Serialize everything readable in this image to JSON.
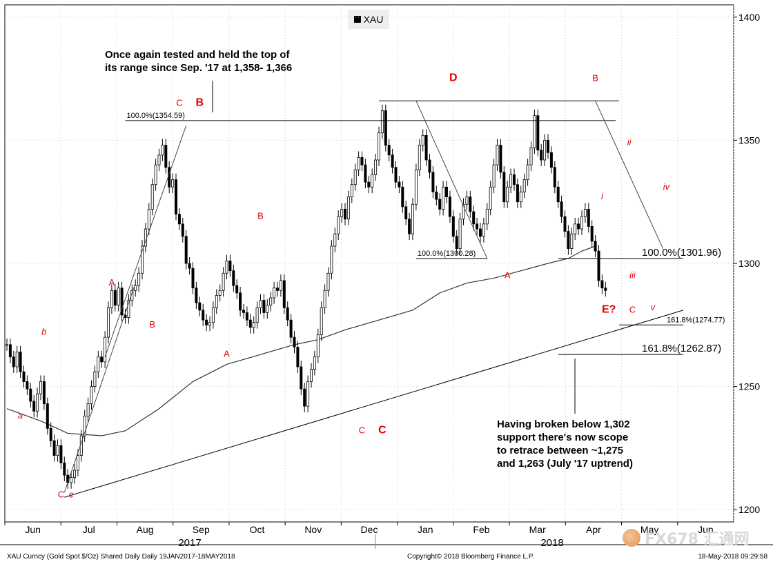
{
  "chart_data": {
    "type": "candlestick",
    "legend": "XAU",
    "ylim": [
      1195,
      1405
    ],
    "y_ticks": [
      1200,
      1250,
      1300,
      1350,
      1400
    ],
    "x_ticks": [
      "Jun",
      "Jul",
      "Aug",
      "Sep",
      "Oct",
      "Nov",
      "Dec",
      "Jan",
      "Feb",
      "Mar",
      "Apr",
      "May",
      "Jun"
    ],
    "x_years": [
      "2017",
      "2018"
    ],
    "close_series": [
      [
        0,
        1267
      ],
      [
        1,
        1262
      ],
      [
        2,
        1258
      ],
      [
        3,
        1264
      ],
      [
        4,
        1256
      ],
      [
        5,
        1252
      ],
      [
        6,
        1249
      ],
      [
        7,
        1244
      ],
      [
        8,
        1240
      ],
      [
        9,
        1247
      ],
      [
        10,
        1252
      ],
      [
        11,
        1243
      ],
      [
        12,
        1233
      ],
      [
        13,
        1228
      ],
      [
        14,
        1222
      ],
      [
        15,
        1226
      ],
      [
        16,
        1219
      ],
      [
        17,
        1214
      ],
      [
        18,
        1211
      ],
      [
        19,
        1213
      ],
      [
        20,
        1216
      ],
      [
        21,
        1222
      ],
      [
        22,
        1230
      ],
      [
        23,
        1238
      ],
      [
        24,
        1243
      ],
      [
        25,
        1250
      ],
      [
        26,
        1256
      ],
      [
        27,
        1262
      ],
      [
        28,
        1260
      ],
      [
        29,
        1270
      ],
      [
        30,
        1282
      ],
      [
        31,
        1289
      ],
      [
        32,
        1283
      ],
      [
        33,
        1290
      ],
      [
        34,
        1279
      ],
      [
        35,
        1278
      ],
      [
        36,
        1285
      ],
      [
        37,
        1289
      ],
      [
        38,
        1291
      ],
      [
        39,
        1296
      ],
      [
        40,
        1307
      ],
      [
        41,
        1314
      ],
      [
        42,
        1322
      ],
      [
        43,
        1332
      ],
      [
        44,
        1340
      ],
      [
        45,
        1344
      ],
      [
        46,
        1348
      ],
      [
        47,
        1339
      ],
      [
        48,
        1331
      ],
      [
        49,
        1334
      ],
      [
        50,
        1320
      ],
      [
        51,
        1316
      ],
      [
        52,
        1311
      ],
      [
        53,
        1300
      ],
      [
        54,
        1298
      ],
      [
        55,
        1290
      ],
      [
        56,
        1284
      ],
      [
        57,
        1281
      ],
      [
        58,
        1277
      ],
      [
        59,
        1275
      ],
      [
        60,
        1276
      ],
      [
        61,
        1282
      ],
      [
        62,
        1287
      ],
      [
        63,
        1289
      ],
      [
        64,
        1296
      ],
      [
        65,
        1301
      ],
      [
        66,
        1297
      ],
      [
        67,
        1291
      ],
      [
        68,
        1288
      ],
      [
        69,
        1281
      ],
      [
        70,
        1280
      ],
      [
        71,
        1277
      ],
      [
        72,
        1274
      ],
      [
        73,
        1276
      ],
      [
        74,
        1282
      ],
      [
        75,
        1285
      ],
      [
        76,
        1280
      ],
      [
        77,
        1283
      ],
      [
        78,
        1286
      ],
      [
        79,
        1290
      ],
      [
        80,
        1289
      ],
      [
        81,
        1293
      ],
      [
        82,
        1282
      ],
      [
        83,
        1277
      ],
      [
        84,
        1270
      ],
      [
        85,
        1266
      ],
      [
        86,
        1258
      ],
      [
        87,
        1249
      ],
      [
        88,
        1242
      ],
      [
        89,
        1252
      ],
      [
        90,
        1257
      ],
      [
        91,
        1262
      ],
      [
        92,
        1271
      ],
      [
        93,
        1282
      ],
      [
        94,
        1289
      ],
      [
        95,
        1296
      ],
      [
        96,
        1307
      ],
      [
        97,
        1312
      ],
      [
        98,
        1319
      ],
      [
        99,
        1322
      ],
      [
        100,
        1318
      ],
      [
        101,
        1327
      ],
      [
        102,
        1332
      ],
      [
        103,
        1338
      ],
      [
        104,
        1343
      ],
      [
        105,
        1340
      ],
      [
        106,
        1333
      ],
      [
        107,
        1331
      ],
      [
        108,
        1336
      ],
      [
        109,
        1342
      ],
      [
        110,
        1353
      ],
      [
        111,
        1362
      ],
      [
        112,
        1348
      ],
      [
        113,
        1344
      ],
      [
        114,
        1339
      ],
      [
        115,
        1333
      ],
      [
        116,
        1331
      ],
      [
        117,
        1323
      ],
      [
        118,
        1318
      ],
      [
        119,
        1312
      ],
      [
        120,
        1324
      ],
      [
        121,
        1338
      ],
      [
        122,
        1348
      ],
      [
        123,
        1352
      ],
      [
        124,
        1342
      ],
      [
        125,
        1337
      ],
      [
        126,
        1329
      ],
      [
        127,
        1326
      ],
      [
        128,
        1322
      ],
      [
        129,
        1331
      ],
      [
        130,
        1327
      ],
      [
        131,
        1319
      ],
      [
        132,
        1311
      ],
      [
        133,
        1306
      ],
      [
        134,
        1318
      ],
      [
        135,
        1324
      ],
      [
        136,
        1327
      ],
      [
        137,
        1321
      ],
      [
        138,
        1316
      ],
      [
        139,
        1314
      ],
      [
        140,
        1311
      ],
      [
        141,
        1316
      ],
      [
        142,
        1322
      ],
      [
        143,
        1331
      ],
      [
        144,
        1340
      ],
      [
        145,
        1348
      ],
      [
        146,
        1337
      ],
      [
        147,
        1325
      ],
      [
        148,
        1331
      ],
      [
        149,
        1336
      ],
      [
        150,
        1332
      ],
      [
        151,
        1325
      ],
      [
        152,
        1329
      ],
      [
        153,
        1334
      ],
      [
        154,
        1340
      ],
      [
        155,
        1347
      ],
      [
        156,
        1360
      ],
      [
        157,
        1346
      ],
      [
        158,
        1342
      ],
      [
        159,
        1350
      ],
      [
        160,
        1345
      ],
      [
        161,
        1339
      ],
      [
        162,
        1331
      ],
      [
        163,
        1325
      ],
      [
        164,
        1319
      ],
      [
        165,
        1313
      ],
      [
        166,
        1306
      ],
      [
        167,
        1312
      ],
      [
        168,
        1316
      ],
      [
        169,
        1314
      ],
      [
        170,
        1319
      ],
      [
        171,
        1322
      ],
      [
        172,
        1315
      ],
      [
        173,
        1309
      ],
      [
        174,
        1305
      ],
      [
        175,
        1293
      ],
      [
        176,
        1290
      ],
      [
        177,
        1289
      ]
    ],
    "moving_average": [
      [
        0,
        1241
      ],
      [
        10,
        1236
      ],
      [
        18,
        1231
      ],
      [
        28,
        1230
      ],
      [
        35,
        1232
      ],
      [
        45,
        1241
      ],
      [
        55,
        1252
      ],
      [
        65,
        1259
      ],
      [
        75,
        1263
      ],
      [
        85,
        1267
      ],
      [
        92,
        1269
      ],
      [
        100,
        1273
      ],
      [
        110,
        1277
      ],
      [
        120,
        1281
      ],
      [
        128,
        1288
      ],
      [
        136,
        1292
      ],
      [
        144,
        1294
      ],
      [
        152,
        1297
      ],
      [
        160,
        1300
      ],
      [
        166,
        1302
      ],
      [
        170,
        1305
      ],
      [
        174,
        1307
      ]
    ],
    "horizontal_levels": [
      {
        "value": 1358,
        "label": "100.0%(1354.59)"
      },
      {
        "value": 1366,
        "label": ""
      },
      {
        "value": 1302,
        "label": "100.0%(1301.96)"
      },
      {
        "value": 1275,
        "label": "161.8%(1274.77)"
      },
      {
        "value": 1263,
        "label": "161.8%(1262.87)"
      },
      {
        "value": 1302,
        "label": "100.0%(1300.28)"
      }
    ],
    "uptrend_line": {
      "from": [
        17,
        1205
      ],
      "to": [
        200,
        1281
      ]
    },
    "wave_labels": [
      {
        "text": "a",
        "x": 4,
        "y": 1237,
        "style": "italic"
      },
      {
        "text": "b",
        "x": 11,
        "y": 1271,
        "style": "italic"
      },
      {
        "text": "C",
        "x": 16,
        "y": 1205,
        "style": "normal"
      },
      {
        "text": "c",
        "x": 19,
        "y": 1205,
        "style": "italic"
      },
      {
        "text": "A",
        "x": 31,
        "y": 1291,
        "style": "normal"
      },
      {
        "text": "B",
        "x": 43,
        "y": 1274,
        "style": "normal"
      },
      {
        "text": "C",
        "x": 51,
        "y": 1364,
        "style": "normal"
      },
      {
        "text": "B",
        "x": 57,
        "y": 1364,
        "style": "bold"
      },
      {
        "text": "A",
        "x": 65,
        "y": 1262,
        "style": "normal"
      },
      {
        "text": "B",
        "x": 75,
        "y": 1318,
        "style": "normal"
      },
      {
        "text": "C",
        "x": 105,
        "y": 1231,
        "style": "normal"
      },
      {
        "text": "C",
        "x": 111,
        "y": 1231,
        "style": "bold"
      },
      {
        "text": "D",
        "x": 132,
        "y": 1374,
        "style": "bold"
      },
      {
        "text": "A",
        "x": 148,
        "y": 1294,
        "style": "normal"
      },
      {
        "text": "B",
        "x": 174,
        "y": 1374,
        "style": "normal"
      },
      {
        "text": "ii",
        "x": 184,
        "y": 1348,
        "style": "italic"
      },
      {
        "text": "i",
        "x": 176,
        "y": 1326,
        "style": "italic"
      },
      {
        "text": "iv",
        "x": 195,
        "y": 1330,
        "style": "italic"
      },
      {
        "text": "iii",
        "x": 185,
        "y": 1294,
        "style": "italic"
      },
      {
        "text": "E?",
        "x": 178,
        "y": 1280,
        "style": "bold"
      },
      {
        "text": "C",
        "x": 185,
        "y": 1280,
        "style": "normal"
      },
      {
        "text": "v",
        "x": 191,
        "y": 1281,
        "style": "italic"
      }
    ]
  },
  "annotations": {
    "top_note_line1": "Once again tested and held the top of",
    "top_note_line2": "its range since Sep. '17 at 1,358- 1,366",
    "bottom_note_line1": "Having broken below 1,302",
    "bottom_note_line2": "support there's now scope",
    "bottom_note_line3": "to  retrace  between ~1,275",
    "bottom_note_line4": "and 1,263 (July '17 uptrend)"
  },
  "footer": {
    "left": "XAU Curncy (Gold Spot  $/Oz) Shared Daily  Daily 19JAN2017-18MAY2018",
    "center": "Copyright© 2018 Bloomberg Finance L.P.",
    "right": "18-May-2018 09:29:58"
  },
  "watermark": "FX678 汇通网"
}
